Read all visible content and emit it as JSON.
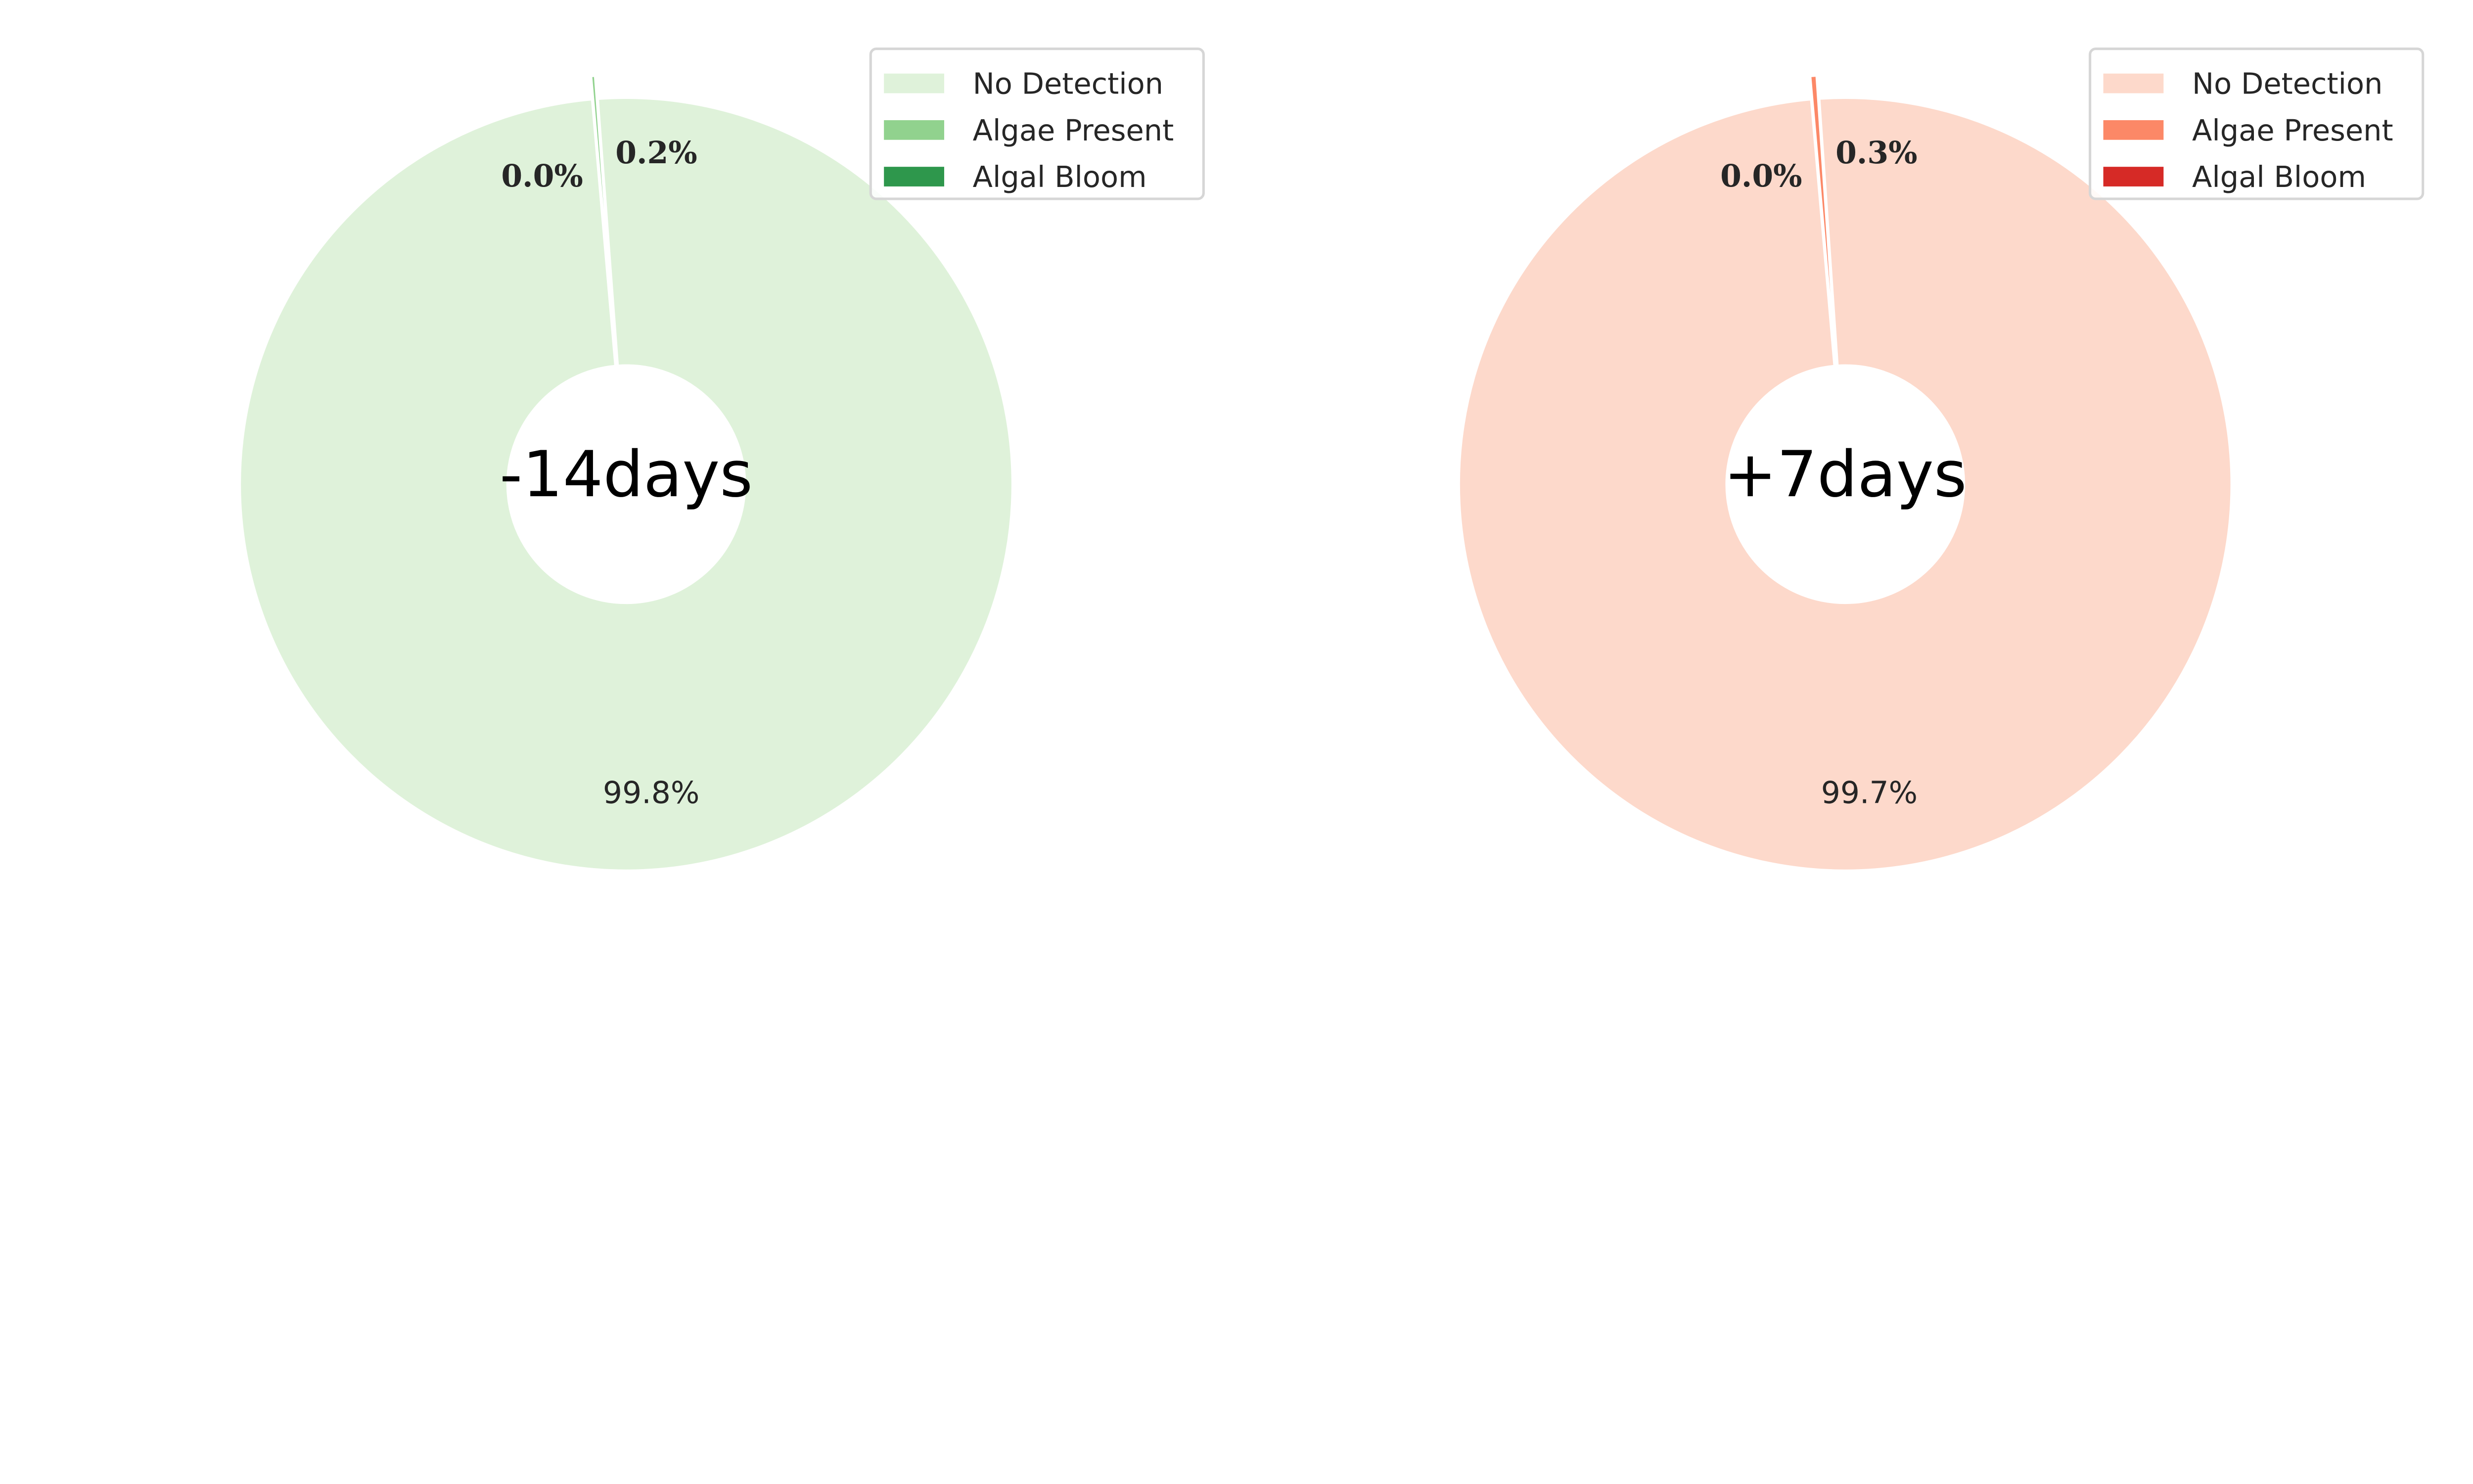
{
  "chart_data": [
    {
      "type": "pie",
      "donut": true,
      "center_label": "-14days",
      "categories": [
        "No Detection",
        "Algae Present",
        "Algal Bloom"
      ],
      "values": [
        99.8,
        0.2,
        0.0
      ],
      "value_labels": [
        "99.8%",
        "0.2%",
        "0.0%"
      ],
      "colors": [
        "#dff2da",
        "#91d28e",
        "#2e974c"
      ],
      "exploded": [
        false,
        true,
        false
      ],
      "legend_placement": "top-right"
    },
    {
      "type": "pie",
      "donut": true,
      "center_label": "+7days",
      "categories": [
        "No Detection",
        "Algae Present",
        "Algal Bloom"
      ],
      "values": [
        99.7,
        0.3,
        0.0
      ],
      "value_labels": [
        "99.7%",
        "0.3%",
        "0.0%"
      ],
      "colors": [
        "#fdd9cb",
        "#fc8867",
        "#d62a26"
      ],
      "exploded": [
        false,
        true,
        false
      ],
      "legend_placement": "top-right"
    }
  ]
}
